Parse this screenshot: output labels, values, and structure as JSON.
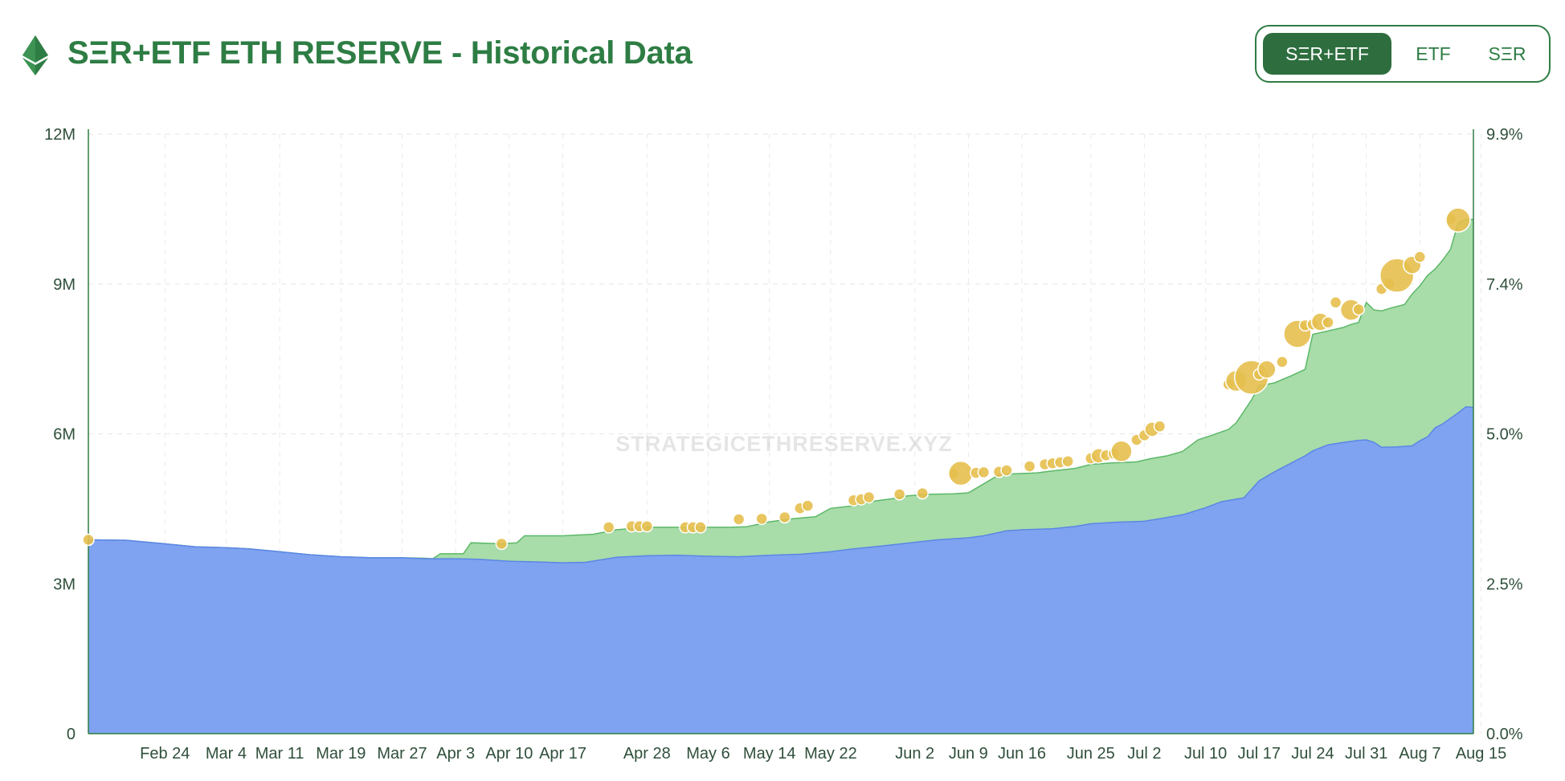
{
  "header": {
    "title": "SΞR+ETF ETH RESERVE - Historical Data",
    "logo": "ethereum-diamond-icon"
  },
  "toggle": {
    "options": [
      "SΞR+ETF",
      "ETF",
      "SΞR"
    ],
    "selected": "SΞR+ETF"
  },
  "watermark": "STRATEGICETHRESERVE.XYZ",
  "colors": {
    "accent": "#2e7d44",
    "etf_fill": "#7fa3f0",
    "ser_fill": "#a8dca9",
    "ser_line": "#5cb868",
    "bubble": "#e6bf4e"
  },
  "chart_data": {
    "type": "area",
    "stacked": true,
    "grid": true,
    "legend": "none",
    "yleft": {
      "ticks": [
        "0",
        "3M",
        "6M",
        "9M",
        "12M"
      ],
      "range": [
        0,
        12000000
      ]
    },
    "yright": {
      "ticks": [
        "0.0%",
        "2.5%",
        "5.0%",
        "7.4%",
        "9.9%"
      ]
    },
    "x_labels": [
      {
        "label": "Feb 24",
        "x": 10
      },
      {
        "label": "Mar 4",
        "x": 18
      },
      {
        "label": "Mar 11",
        "x": 25
      },
      {
        "label": "Mar 19",
        "x": 33
      },
      {
        "label": "Mar 27",
        "x": 41
      },
      {
        "label": "Apr 3",
        "x": 48
      },
      {
        "label": "Apr 10",
        "x": 55
      },
      {
        "label": "Apr 17",
        "x": 62
      },
      {
        "label": "Apr 28",
        "x": 73
      },
      {
        "label": "May 6",
        "x": 81
      },
      {
        "label": "May 14",
        "x": 89
      },
      {
        "label": "May 22",
        "x": 97
      },
      {
        "label": "Jun 2",
        "x": 108
      },
      {
        "label": "Jun 9",
        "x": 115
      },
      {
        "label": "Jun 16",
        "x": 122
      },
      {
        "label": "Jun 25",
        "x": 131
      },
      {
        "label": "Jul 2",
        "x": 138
      },
      {
        "label": "Jul 10",
        "x": 146
      },
      {
        "label": "Jul 17",
        "x": 153
      },
      {
        "label": "Jul 24",
        "x": 160
      },
      {
        "label": "Jul 31",
        "x": 167
      },
      {
        "label": "Aug 7",
        "x": 174
      },
      {
        "label": "Aug 15",
        "x": 182
      }
    ],
    "x_range": [
      0,
      181
    ],
    "series": [
      {
        "values": [
          [
            0,
            3880000
          ],
          [
            5,
            3870000
          ],
          [
            10,
            3800000
          ],
          [
            14,
            3740000
          ],
          [
            18,
            3720000
          ],
          [
            21,
            3700000
          ],
          [
            25,
            3640000
          ],
          [
            29,
            3580000
          ],
          [
            33,
            3540000
          ],
          [
            37,
            3520000
          ],
          [
            41,
            3520000
          ],
          [
            44,
            3500000
          ],
          [
            48,
            3500000
          ],
          [
            51,
            3490000
          ],
          [
            55,
            3450000
          ],
          [
            58,
            3440000
          ],
          [
            62,
            3420000
          ],
          [
            65,
            3430000
          ],
          [
            69,
            3530000
          ],
          [
            73,
            3560000
          ],
          [
            77,
            3570000
          ],
          [
            81,
            3550000
          ],
          [
            85,
            3540000
          ],
          [
            89,
            3570000
          ],
          [
            93,
            3590000
          ],
          [
            97,
            3640000
          ],
          [
            100,
            3700000
          ],
          [
            104,
            3760000
          ],
          [
            108,
            3830000
          ],
          [
            111,
            3880000
          ],
          [
            115,
            3920000
          ],
          [
            117,
            3960000
          ],
          [
            120,
            4060000
          ],
          [
            122,
            4080000
          ],
          [
            126,
            4100000
          ],
          [
            129,
            4150000
          ],
          [
            131,
            4200000
          ],
          [
            134,
            4230000
          ],
          [
            138,
            4250000
          ],
          [
            140,
            4300000
          ],
          [
            143,
            4380000
          ],
          [
            146,
            4520000
          ],
          [
            148,
            4640000
          ],
          [
            151,
            4720000
          ],
          [
            153,
            5060000
          ],
          [
            155,
            5240000
          ],
          [
            157,
            5400000
          ],
          [
            159,
            5560000
          ],
          [
            160,
            5660000
          ],
          [
            162,
            5780000
          ],
          [
            164,
            5830000
          ],
          [
            166,
            5870000
          ],
          [
            167,
            5880000
          ],
          [
            168,
            5830000
          ],
          [
            169,
            5730000
          ],
          [
            171,
            5740000
          ],
          [
            173,
            5760000
          ],
          [
            174,
            5860000
          ],
          [
            175,
            5940000
          ],
          [
            176,
            6120000
          ],
          [
            177,
            6200000
          ],
          [
            178,
            6310000
          ],
          [
            179,
            6420000
          ],
          [
            180,
            6540000
          ],
          [
            181,
            6530000
          ]
        ]
      },
      {
        "values": [
          [
            0,
            3880000
          ],
          [
            5,
            3870000
          ],
          [
            10,
            3800000
          ],
          [
            14,
            3740000
          ],
          [
            18,
            3720000
          ],
          [
            21,
            3700000
          ],
          [
            25,
            3640000
          ],
          [
            29,
            3580000
          ],
          [
            33,
            3540000
          ],
          [
            37,
            3520000
          ],
          [
            41,
            3520000
          ],
          [
            44,
            3510000
          ],
          [
            45,
            3500000
          ],
          [
            46,
            3600000
          ],
          [
            49,
            3600000
          ],
          [
            50,
            3820000
          ],
          [
            54,
            3800000
          ],
          [
            56,
            3820000
          ],
          [
            57,
            3960000
          ],
          [
            60,
            3960000
          ],
          [
            62,
            3960000
          ],
          [
            66,
            3990000
          ],
          [
            69,
            4080000
          ],
          [
            73,
            4130000
          ],
          [
            77,
            4130000
          ],
          [
            79,
            4120000
          ],
          [
            81,
            4130000
          ],
          [
            84,
            4130000
          ],
          [
            86,
            4140000
          ],
          [
            89,
            4240000
          ],
          [
            92,
            4300000
          ],
          [
            95,
            4340000
          ],
          [
            97,
            4510000
          ],
          [
            100,
            4560000
          ],
          [
            103,
            4660000
          ],
          [
            105,
            4700000
          ],
          [
            107,
            4760000
          ],
          [
            110,
            4790000
          ],
          [
            113,
            4800000
          ],
          [
            115,
            4820000
          ],
          [
            117,
            5000000
          ],
          [
            119,
            5180000
          ],
          [
            121,
            5200000
          ],
          [
            124,
            5220000
          ],
          [
            126,
            5260000
          ],
          [
            129,
            5310000
          ],
          [
            131,
            5390000
          ],
          [
            134,
            5420000
          ],
          [
            137,
            5440000
          ],
          [
            139,
            5510000
          ],
          [
            141,
            5560000
          ],
          [
            143,
            5650000
          ],
          [
            145,
            5880000
          ],
          [
            147,
            5980000
          ],
          [
            149,
            6090000
          ],
          [
            150,
            6220000
          ],
          [
            152,
            6680000
          ],
          [
            153,
            6960000
          ],
          [
            155,
            7020000
          ],
          [
            157,
            7150000
          ],
          [
            159,
            7290000
          ],
          [
            160,
            7990000
          ],
          [
            162,
            8060000
          ],
          [
            164,
            8130000
          ],
          [
            165,
            8190000
          ],
          [
            166,
            8230000
          ],
          [
            167,
            8630000
          ],
          [
            168,
            8480000
          ],
          [
            169,
            8460000
          ],
          [
            170,
            8510000
          ],
          [
            172,
            8590000
          ],
          [
            173,
            8800000
          ],
          [
            174,
            8960000
          ],
          [
            175,
            9170000
          ],
          [
            176,
            9300000
          ],
          [
            177,
            9480000
          ],
          [
            178,
            9690000
          ],
          [
            179,
            10220000
          ],
          [
            180,
            10290000
          ],
          [
            181,
            10290000
          ]
        ]
      }
    ],
    "bubbles": [
      [
        0,
        3880000,
        6
      ],
      [
        54,
        3800000,
        6
      ],
      [
        68,
        4130000,
        6
      ],
      [
        71,
        4150000,
        6
      ],
      [
        72,
        4150000,
        6
      ],
      [
        73,
        4150000,
        6
      ],
      [
        78,
        4130000,
        6
      ],
      [
        79,
        4130000,
        6
      ],
      [
        80,
        4130000,
        6
      ],
      [
        85,
        4290000,
        6
      ],
      [
        88,
        4300000,
        6
      ],
      [
        91,
        4330000,
        6
      ],
      [
        93,
        4510000,
        6
      ],
      [
        94,
        4560000,
        6
      ],
      [
        100,
        4670000,
        6
      ],
      [
        101,
        4690000,
        6
      ],
      [
        102,
        4730000,
        6
      ],
      [
        106,
        4790000,
        6
      ],
      [
        109,
        4810000,
        6
      ],
      [
        113,
        5200000,
        6
      ],
      [
        114,
        5210000,
        14
      ],
      [
        116,
        5220000,
        6
      ],
      [
        117,
        5230000,
        6
      ],
      [
        119,
        5240000,
        6
      ],
      [
        120,
        5270000,
        6
      ],
      [
        123,
        5350000,
        6
      ],
      [
        125,
        5390000,
        6
      ],
      [
        126,
        5410000,
        6
      ],
      [
        127,
        5430000,
        6
      ],
      [
        128,
        5450000,
        6
      ],
      [
        131,
        5510000,
        6
      ],
      [
        132,
        5560000,
        8
      ],
      [
        133,
        5570000,
        6
      ],
      [
        134,
        5600000,
        6
      ],
      [
        135,
        5650000,
        12
      ],
      [
        137,
        5880000,
        6
      ],
      [
        138,
        5970000,
        6
      ],
      [
        139,
        6090000,
        8
      ],
      [
        140,
        6150000,
        6
      ],
      [
        149,
        6990000,
        6
      ],
      [
        150,
        7060000,
        12
      ],
      [
        152,
        7130000,
        20
      ],
      [
        153,
        7190000,
        6
      ],
      [
        154,
        7290000,
        10
      ],
      [
        156,
        7440000,
        6
      ],
      [
        158,
        8000000,
        16
      ],
      [
        159,
        8170000,
        6
      ],
      [
        160,
        8190000,
        6
      ],
      [
        161,
        8240000,
        10
      ],
      [
        162,
        8230000,
        6
      ],
      [
        163,
        8630000,
        6
      ],
      [
        165,
        8480000,
        12
      ],
      [
        166,
        8490000,
        6
      ],
      [
        169,
        8900000,
        6
      ],
      [
        170,
        9000000,
        6
      ],
      [
        171,
        9170000,
        20
      ],
      [
        173,
        9380000,
        10
      ],
      [
        174,
        9540000,
        6
      ],
      [
        178,
        10300000,
        6
      ],
      [
        179,
        10280000,
        14
      ]
    ]
  }
}
